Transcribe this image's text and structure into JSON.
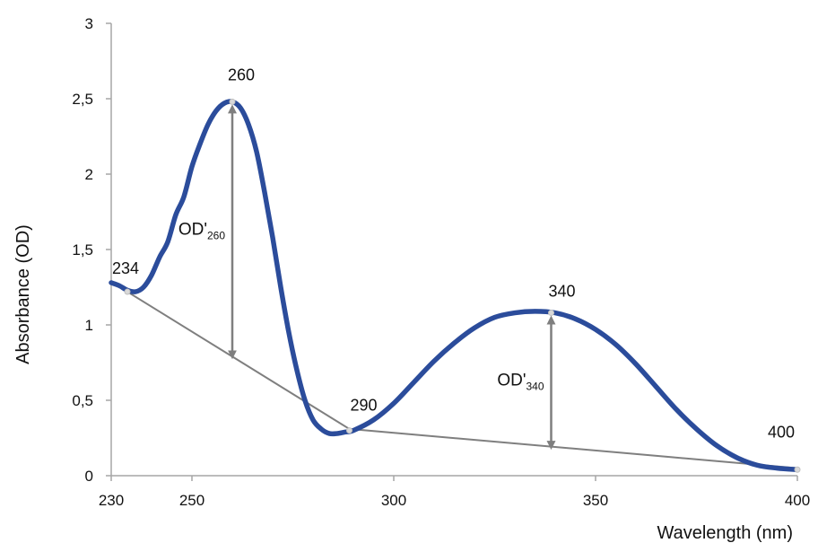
{
  "chart_data": {
    "type": "line",
    "title": "",
    "xlabel": "Wavelength (nm)",
    "ylabel": "Absorbance (OD)",
    "xlim": [
      230,
      400
    ],
    "ylim": [
      0,
      3
    ],
    "grid": false,
    "x_ticks": [
      230,
      250,
      300,
      350,
      400
    ],
    "x_tick_labels": [
      "230",
      "250",
      "300",
      "350",
      "400"
    ],
    "y_ticks": [
      0,
      0.5,
      1,
      1.5,
      2,
      2.5,
      3
    ],
    "y_tick_labels": [
      "0",
      "0,5",
      "1",
      "1,5",
      "2",
      "2,5",
      "3"
    ],
    "series": [
      {
        "color": "#2b4c9b",
        "x": [
          230,
          232,
          234,
          236,
          238,
          240,
          242,
          244,
          246,
          248,
          250,
          252,
          254,
          256,
          258,
          260,
          262,
          264,
          266,
          268,
          270,
          272,
          274,
          276,
          278,
          280,
          282,
          284,
          286,
          288,
          290,
          295,
          300,
          305,
          310,
          315,
          320,
          325,
          330,
          335,
          340,
          345,
          350,
          355,
          360,
          365,
          370,
          375,
          380,
          385,
          390,
          395,
          400
        ],
        "y": [
          1.28,
          1.26,
          1.23,
          1.22,
          1.25,
          1.33,
          1.45,
          1.55,
          1.73,
          1.85,
          2.05,
          2.2,
          2.33,
          2.42,
          2.47,
          2.48,
          2.44,
          2.33,
          2.15,
          1.88,
          1.58,
          1.25,
          0.95,
          0.7,
          0.5,
          0.37,
          0.31,
          0.28,
          0.28,
          0.29,
          0.3,
          0.37,
          0.48,
          0.62,
          0.76,
          0.88,
          0.98,
          1.05,
          1.08,
          1.09,
          1.08,
          1.04,
          0.97,
          0.87,
          0.74,
          0.59,
          0.44,
          0.31,
          0.2,
          0.12,
          0.07,
          0.05,
          0.04
        ]
      }
    ],
    "baseline": {
      "color": "#7f7f7f",
      "x": [
        234,
        289,
        400
      ],
      "y": [
        1.22,
        0.31,
        0.05
      ]
    },
    "point_labels": [
      {
        "x": 234,
        "y": 1.22,
        "text": "234"
      },
      {
        "x": 260,
        "y": 2.48,
        "text": "260"
      },
      {
        "x": 289,
        "y": 0.3,
        "text": "290"
      },
      {
        "x": 339,
        "y": 1.08,
        "text": "340"
      },
      {
        "x": 400,
        "y": 0.04,
        "text": "400"
      }
    ],
    "annotations": [
      {
        "x": 260,
        "y_from": 0.79,
        "y_to": 2.48,
        "text": "OD'",
        "sub": "260"
      },
      {
        "x": 339,
        "y_from": 0.19,
        "y_to": 1.08,
        "text": "OD'",
        "sub": "340"
      }
    ]
  }
}
